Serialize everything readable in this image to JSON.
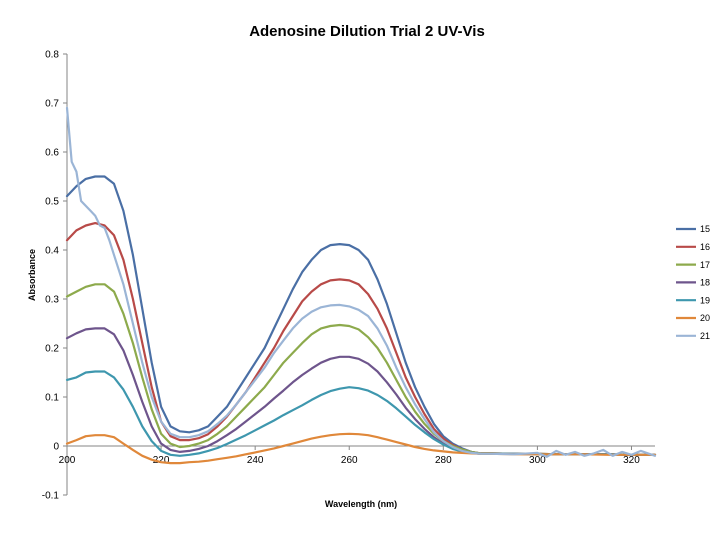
{
  "chart_data": {
    "type": "line",
    "title": "Adenosine Dilution Trial 2 UV-Vis",
    "xlabel": "Wavelength (nm)",
    "ylabel": "Absorbance",
    "xlim": [
      200,
      325
    ],
    "ylim": [
      -0.1,
      0.8
    ],
    "x_ticks": [
      200,
      220,
      240,
      260,
      280,
      300,
      320
    ],
    "y_ticks": [
      -0.1,
      0,
      0.1,
      0.2,
      0.3,
      0.4,
      0.5,
      0.6,
      0.7,
      0.8
    ],
    "x_tick_labels": [
      "200",
      "220",
      "240",
      "260",
      "280",
      "300",
      "320"
    ],
    "y_tick_labels": [
      "-0.1",
      "0",
      "0.1",
      "0.2",
      "0.3",
      "0.4",
      "0.5",
      "0.6",
      "0.7",
      "0.8"
    ],
    "grid": false,
    "legend_position": "right",
    "series": [
      {
        "name": "15",
        "color": "#4A6FA5",
        "x": [
          200,
          202,
          204,
          206,
          208,
          210,
          212,
          214,
          216,
          218,
          220,
          222,
          224,
          226,
          228,
          230,
          232,
          234,
          236,
          238,
          240,
          242,
          244,
          246,
          248,
          250,
          252,
          254,
          256,
          258,
          260,
          262,
          264,
          266,
          268,
          270,
          272,
          274,
          276,
          278,
          280,
          282,
          284,
          286,
          288,
          290,
          295,
          300,
          305,
          310,
          315,
          320,
          325
        ],
        "y": [
          0.51,
          0.53,
          0.545,
          0.55,
          0.55,
          0.535,
          0.48,
          0.39,
          0.28,
          0.17,
          0.08,
          0.04,
          0.03,
          0.028,
          0.032,
          0.04,
          0.06,
          0.08,
          0.11,
          0.14,
          0.17,
          0.2,
          0.24,
          0.28,
          0.32,
          0.355,
          0.38,
          0.4,
          0.41,
          0.412,
          0.41,
          0.4,
          0.38,
          0.34,
          0.29,
          0.23,
          0.17,
          0.12,
          0.08,
          0.045,
          0.02,
          0.005,
          -0.005,
          -0.012,
          -0.015,
          -0.015,
          -0.016,
          -0.016,
          -0.017,
          -0.017,
          -0.017,
          -0.018,
          -0.018
        ]
      },
      {
        "name": "16",
        "color": "#B84A48",
        "x": [
          200,
          202,
          204,
          206,
          208,
          210,
          212,
          214,
          216,
          218,
          220,
          222,
          224,
          226,
          228,
          230,
          232,
          234,
          236,
          238,
          240,
          242,
          244,
          246,
          248,
          250,
          252,
          254,
          256,
          258,
          260,
          262,
          264,
          266,
          268,
          270,
          272,
          274,
          276,
          278,
          280,
          282,
          284,
          286,
          288,
          290,
          295,
          300,
          305,
          310,
          315,
          320,
          325
        ],
        "y": [
          0.42,
          0.44,
          0.45,
          0.455,
          0.45,
          0.43,
          0.38,
          0.3,
          0.21,
          0.12,
          0.05,
          0.02,
          0.012,
          0.012,
          0.016,
          0.024,
          0.04,
          0.06,
          0.085,
          0.11,
          0.14,
          0.17,
          0.2,
          0.235,
          0.265,
          0.295,
          0.315,
          0.33,
          0.338,
          0.34,
          0.338,
          0.33,
          0.31,
          0.28,
          0.24,
          0.19,
          0.14,
          0.1,
          0.065,
          0.035,
          0.015,
          0.002,
          -0.007,
          -0.012,
          -0.015,
          -0.015,
          -0.016,
          -0.016,
          -0.017,
          -0.017,
          -0.017,
          -0.018,
          -0.018
        ]
      },
      {
        "name": "17",
        "color": "#8DAA4C",
        "x": [
          200,
          202,
          204,
          206,
          208,
          210,
          212,
          214,
          216,
          218,
          220,
          222,
          224,
          226,
          228,
          230,
          232,
          234,
          236,
          238,
          240,
          242,
          244,
          246,
          248,
          250,
          252,
          254,
          256,
          258,
          260,
          262,
          264,
          266,
          268,
          270,
          272,
          274,
          276,
          278,
          280,
          282,
          284,
          286,
          288,
          290,
          295,
          300,
          305,
          310,
          315,
          320,
          325
        ],
        "y": [
          0.305,
          0.315,
          0.325,
          0.33,
          0.33,
          0.315,
          0.27,
          0.21,
          0.14,
          0.075,
          0.025,
          0.005,
          -0.002,
          0.0,
          0.005,
          0.012,
          0.025,
          0.04,
          0.06,
          0.08,
          0.1,
          0.12,
          0.145,
          0.17,
          0.19,
          0.21,
          0.228,
          0.24,
          0.245,
          0.247,
          0.245,
          0.238,
          0.222,
          0.2,
          0.17,
          0.135,
          0.1,
          0.07,
          0.045,
          0.025,
          0.01,
          0.0,
          -0.007,
          -0.012,
          -0.015,
          -0.015,
          -0.016,
          -0.016,
          -0.017,
          -0.017,
          -0.017,
          -0.018,
          -0.018
        ]
      },
      {
        "name": "18",
        "color": "#6E558C",
        "x": [
          200,
          202,
          204,
          206,
          208,
          210,
          212,
          214,
          216,
          218,
          220,
          222,
          224,
          226,
          228,
          230,
          232,
          234,
          236,
          238,
          240,
          242,
          244,
          246,
          248,
          250,
          252,
          254,
          256,
          258,
          260,
          262,
          264,
          266,
          268,
          270,
          272,
          274,
          276,
          278,
          280,
          282,
          284,
          286,
          288,
          290,
          295,
          300,
          305,
          310,
          315,
          320,
          325
        ],
        "y": [
          0.22,
          0.23,
          0.238,
          0.24,
          0.24,
          0.228,
          0.195,
          0.145,
          0.09,
          0.04,
          0.005,
          -0.008,
          -0.012,
          -0.01,
          -0.006,
          0.0,
          0.01,
          0.022,
          0.035,
          0.05,
          0.065,
          0.08,
          0.097,
          0.113,
          0.13,
          0.145,
          0.158,
          0.17,
          0.178,
          0.182,
          0.182,
          0.178,
          0.168,
          0.152,
          0.13,
          0.105,
          0.078,
          0.055,
          0.035,
          0.018,
          0.005,
          -0.004,
          -0.01,
          -0.014,
          -0.016,
          -0.016,
          -0.016,
          -0.017,
          -0.017,
          -0.017,
          -0.017,
          -0.018,
          -0.018
        ]
      },
      {
        "name": "19",
        "color": "#3E97AE",
        "x": [
          200,
          202,
          204,
          206,
          208,
          210,
          212,
          214,
          216,
          218,
          220,
          222,
          224,
          226,
          228,
          230,
          232,
          234,
          236,
          238,
          240,
          242,
          244,
          246,
          248,
          250,
          252,
          254,
          256,
          258,
          260,
          262,
          264,
          266,
          268,
          270,
          272,
          274,
          276,
          278,
          280,
          282,
          284,
          286,
          288,
          290,
          295,
          300,
          305,
          310,
          315,
          320,
          325
        ],
        "y": [
          0.135,
          0.14,
          0.15,
          0.152,
          0.152,
          0.14,
          0.115,
          0.08,
          0.04,
          0.01,
          -0.01,
          -0.018,
          -0.02,
          -0.018,
          -0.015,
          -0.01,
          -0.004,
          0.004,
          0.013,
          0.022,
          0.032,
          0.042,
          0.052,
          0.063,
          0.073,
          0.083,
          0.094,
          0.104,
          0.112,
          0.117,
          0.12,
          0.118,
          0.113,
          0.104,
          0.092,
          0.077,
          0.06,
          0.043,
          0.028,
          0.014,
          0.003,
          -0.006,
          -0.011,
          -0.014,
          -0.016,
          -0.016,
          -0.016,
          -0.017,
          -0.017,
          -0.017,
          -0.017,
          -0.018,
          -0.018
        ]
      },
      {
        "name": "20",
        "color": "#E0883A",
        "x": [
          200,
          202,
          204,
          206,
          208,
          210,
          212,
          214,
          216,
          218,
          220,
          222,
          224,
          226,
          228,
          230,
          232,
          234,
          236,
          238,
          240,
          242,
          244,
          246,
          248,
          250,
          252,
          254,
          256,
          258,
          260,
          262,
          264,
          266,
          268,
          270,
          272,
          274,
          276,
          278,
          280,
          282,
          284,
          286,
          288,
          290,
          295,
          300,
          305,
          310,
          315,
          320,
          325
        ],
        "y": [
          0.005,
          0.012,
          0.02,
          0.022,
          0.022,
          0.018,
          0.005,
          -0.008,
          -0.02,
          -0.028,
          -0.033,
          -0.035,
          -0.035,
          -0.033,
          -0.032,
          -0.03,
          -0.027,
          -0.024,
          -0.021,
          -0.017,
          -0.013,
          -0.009,
          -0.005,
          0.0,
          0.005,
          0.01,
          0.015,
          0.019,
          0.022,
          0.024,
          0.025,
          0.024,
          0.022,
          0.018,
          0.013,
          0.008,
          0.003,
          -0.002,
          -0.006,
          -0.009,
          -0.011,
          -0.013,
          -0.014,
          -0.015,
          -0.016,
          -0.016,
          -0.017,
          -0.017,
          -0.017,
          -0.017,
          -0.018,
          -0.018,
          -0.018
        ]
      },
      {
        "name": "21",
        "color": "#9BB5D6",
        "x": [
          200,
          201,
          202,
          203,
          204,
          205,
          206,
          207,
          208,
          209,
          210,
          212,
          214,
          216,
          218,
          220,
          222,
          224,
          226,
          228,
          230,
          232,
          234,
          236,
          238,
          240,
          242,
          244,
          246,
          248,
          250,
          252,
          254,
          256,
          258,
          260,
          262,
          264,
          266,
          268,
          270,
          272,
          274,
          276,
          278,
          280,
          282,
          284,
          286,
          288,
          290,
          295,
          300,
          302,
          304,
          306,
          308,
          310,
          312,
          314,
          316,
          318,
          320,
          322,
          325
        ],
        "y": [
          0.69,
          0.58,
          0.56,
          0.5,
          0.49,
          0.48,
          0.47,
          0.45,
          0.445,
          0.42,
          0.39,
          0.33,
          0.25,
          0.17,
          0.1,
          0.05,
          0.025,
          0.018,
          0.018,
          0.022,
          0.03,
          0.045,
          0.062,
          0.085,
          0.11,
          0.135,
          0.16,
          0.19,
          0.215,
          0.24,
          0.26,
          0.274,
          0.283,
          0.287,
          0.288,
          0.285,
          0.278,
          0.265,
          0.24,
          0.205,
          0.16,
          0.12,
          0.085,
          0.055,
          0.028,
          0.01,
          -0.002,
          -0.01,
          -0.014,
          -0.016,
          -0.016,
          -0.017,
          -0.014,
          -0.022,
          -0.01,
          -0.018,
          -0.012,
          -0.02,
          -0.015,
          -0.008,
          -0.02,
          -0.012,
          -0.018,
          -0.01,
          -0.02
        ]
      }
    ]
  }
}
